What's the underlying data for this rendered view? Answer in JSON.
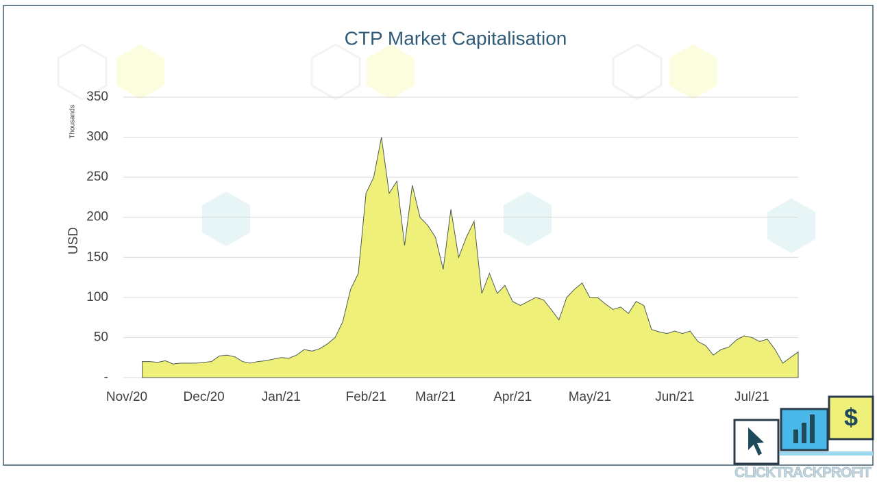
{
  "chart_data": {
    "type": "area",
    "title": "CTP Market Capitalisation",
    "y_label": "USD",
    "y_unit": "Thousands",
    "categories": [
      "Nov/20",
      null,
      null,
      null,
      null,
      null,
      null,
      null,
      null,
      null,
      "Dec/20",
      null,
      null,
      null,
      null,
      null,
      null,
      null,
      null,
      null,
      "Jan/21",
      null,
      null,
      null,
      null,
      null,
      null,
      null,
      null,
      null,
      null,
      "Feb/21",
      null,
      null,
      null,
      null,
      null,
      null,
      null,
      null,
      "Mar/21",
      null,
      null,
      null,
      null,
      null,
      null,
      null,
      null,
      null,
      "Apr/21",
      null,
      null,
      null,
      null,
      null,
      null,
      null,
      null,
      null,
      "May/21",
      null,
      null,
      null,
      null,
      null,
      null,
      null,
      null,
      null,
      null,
      "Jun/21",
      null,
      null,
      null,
      null,
      null,
      null,
      null,
      null,
      null,
      "Jul/21",
      null,
      null,
      null,
      null,
      null,
      null
    ],
    "values": [
      null,
      null,
      20,
      20,
      19,
      21,
      17,
      18,
      18,
      18,
      19,
      20,
      27,
      28,
      26,
      20,
      18,
      20,
      21,
      23,
      25,
      24,
      28,
      35,
      33,
      36,
      42,
      50,
      70,
      110,
      130,
      230,
      250,
      300,
      230,
      245,
      165,
      240,
      200,
      190,
      175,
      135,
      210,
      150,
      175,
      195,
      105,
      130,
      105,
      115,
      95,
      90,
      95,
      100,
      97,
      85,
      72,
      100,
      110,
      118,
      100,
      100,
      92,
      85,
      88,
      80,
      95,
      90,
      60,
      57,
      55,
      58,
      55,
      58,
      45,
      40,
      28,
      35,
      38,
      47,
      52,
      50,
      45,
      48,
      35,
      18,
      25,
      32
    ],
    "color": "#eef07a",
    "line_color": "#4d5a52",
    "ylim": [
      0,
      350
    ],
    "yticks": [
      {
        "value": 0,
        "label": "-"
      },
      50,
      100,
      150,
      200,
      250,
      300,
      350
    ],
    "grid": true
  },
  "logo_text": "CLICKTRACKPROFIT"
}
